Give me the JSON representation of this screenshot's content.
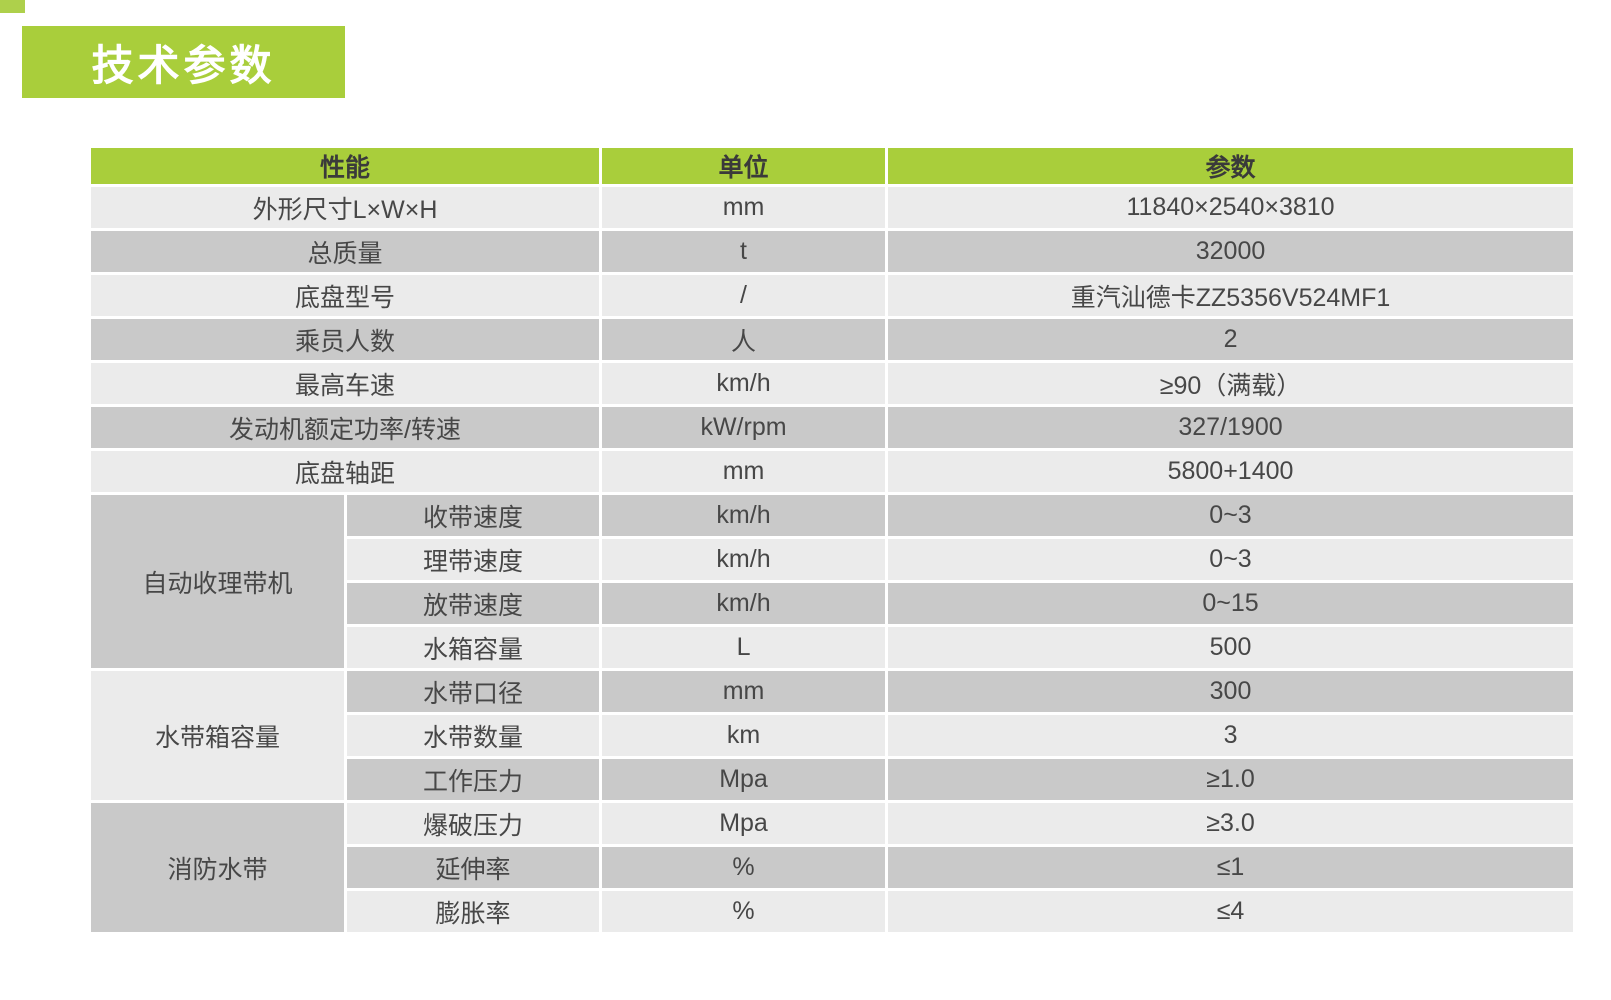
{
  "title": "技术参数",
  "colors": {
    "accent_green": "#a9ce3b",
    "row_light": "#ebebeb",
    "row_dark": "#c9c9c9",
    "title_text": "#ffffff",
    "body_text": "#474747"
  },
  "table": {
    "headers": [
      "性能",
      "单位",
      "参数"
    ],
    "plain_rows": [
      {
        "label": "外形尺寸L×W×H",
        "unit": "mm",
        "value": "11840×2540×3810"
      },
      {
        "label": "总质量",
        "unit": "t",
        "value": "32000"
      },
      {
        "label": "底盘型号",
        "unit": "/",
        "value": "重汽汕德卡ZZ5356V524MF1"
      },
      {
        "label": "乘员人数",
        "unit": "人",
        "value": "2"
      },
      {
        "label": "最高车速",
        "unit": "km/h",
        "value": "≥90（满载）"
      },
      {
        "label": "发动机额定功率/转速",
        "unit": "kW/rpm",
        "value": "327/1900"
      },
      {
        "label": "底盘轴距",
        "unit": "mm",
        "value": "5800+1400"
      }
    ],
    "groups": [
      {
        "name": "自动收理带机",
        "rows": [
          {
            "label": "收带速度",
            "unit": "km/h",
            "value": "0~3"
          },
          {
            "label": "理带速度",
            "unit": "km/h",
            "value": "0~3"
          },
          {
            "label": "放带速度",
            "unit": "km/h",
            "value": "0~15"
          },
          {
            "label": "水箱容量",
            "unit": "L",
            "value": "500"
          }
        ]
      },
      {
        "name": "水带箱容量",
        "rows": [
          {
            "label": "水带口径",
            "unit": "mm",
            "value": "300"
          },
          {
            "label": "水带数量",
            "unit": "km",
            "value": "3"
          },
          {
            "label": "工作压力",
            "unit": "Mpa",
            "value": "≥1.0"
          }
        ]
      },
      {
        "name": "消防水带",
        "rows": [
          {
            "label": "爆破压力",
            "unit": "Mpa",
            "value": "≥3.0"
          },
          {
            "label": "延伸率",
            "unit": "%",
            "value": "≤1"
          },
          {
            "label": "膨胀率",
            "unit": "%",
            "value": "≤4"
          }
        ]
      }
    ]
  }
}
